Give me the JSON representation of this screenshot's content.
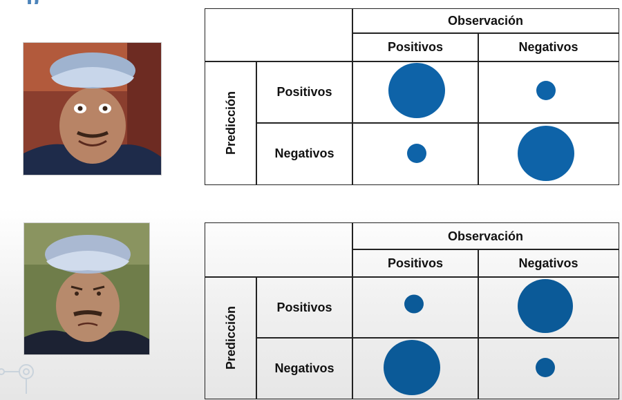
{
  "colors": {
    "dot": "#0e63a8",
    "title_blue": "#2e6fae",
    "border": "#222222"
  },
  "header": {
    "title_fragment": "p"
  },
  "matrices": [
    {
      "observation_label": "Observación",
      "prediction_label": "Predicción",
      "col_labels": [
        "Positivos",
        "Negativos"
      ],
      "row_labels": [
        "Positivos",
        "Negativos"
      ],
      "cells": [
        [
          {
            "size": "large"
          },
          {
            "size": "small"
          }
        ],
        [
          {
            "size": "small"
          },
          {
            "size": "large"
          }
        ]
      ]
    },
    {
      "observation_label": "Observación",
      "prediction_label": "Predicción",
      "col_labels": [
        "Positivos",
        "Negativos"
      ],
      "row_labels": [
        "Positivos",
        "Negativos"
      ],
      "cells": [
        [
          {
            "size": "small"
          },
          {
            "size": "large"
          }
        ],
        [
          {
            "size": "large"
          },
          {
            "size": "small"
          }
        ]
      ]
    }
  ]
}
